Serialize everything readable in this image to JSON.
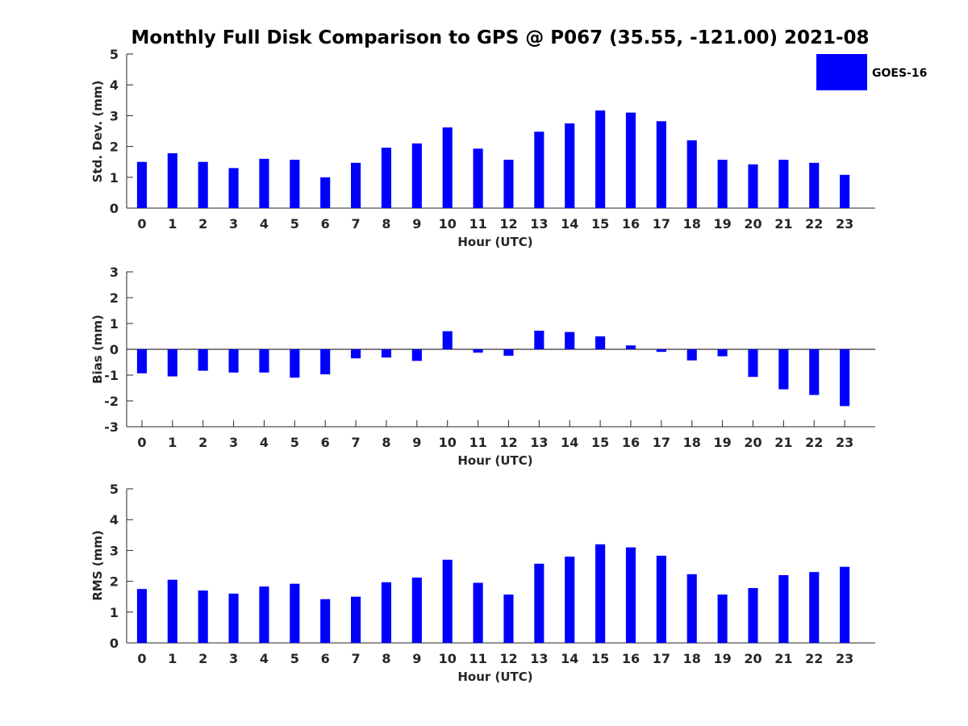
{
  "title": "Monthly Full Disk Comparison to GPS @ P067 (35.55, -121.00) 2021-08",
  "legend": {
    "label": "GOES-16",
    "color": "#0000ff"
  },
  "chart_data": [
    {
      "type": "bar",
      "title": "",
      "xlabel": "Hour (UTC)",
      "ylabel": "Std. Dev. (mm)",
      "categories": [
        "0",
        "1",
        "2",
        "3",
        "4",
        "5",
        "6",
        "7",
        "8",
        "9",
        "10",
        "11",
        "12",
        "13",
        "14",
        "15",
        "16",
        "17",
        "18",
        "19",
        "20",
        "21",
        "22",
        "23"
      ],
      "ylim": [
        0,
        5
      ],
      "yticks": [
        0,
        1,
        2,
        3,
        4,
        5
      ],
      "grid": false,
      "legend_position": "top-right",
      "series": [
        {
          "name": "GOES-16",
          "color": "#0000ff",
          "values": [
            1.5,
            1.78,
            1.5,
            1.3,
            1.6,
            1.57,
            1.0,
            1.47,
            1.96,
            2.1,
            2.62,
            1.93,
            1.57,
            2.48,
            2.75,
            3.17,
            3.1,
            2.82,
            2.2,
            1.57,
            1.42,
            1.57,
            1.47,
            1.08
          ]
        }
      ]
    },
    {
      "type": "bar",
      "title": "",
      "xlabel": "Hour (UTC)",
      "ylabel": "Bias (mm)",
      "categories": [
        "0",
        "1",
        "2",
        "3",
        "4",
        "5",
        "6",
        "7",
        "8",
        "9",
        "10",
        "11",
        "12",
        "13",
        "14",
        "15",
        "16",
        "17",
        "18",
        "19",
        "20",
        "21",
        "22",
        "23"
      ],
      "ylim": [
        -3,
        3
      ],
      "yticks": [
        -3,
        -2,
        -1,
        0,
        1,
        2,
        3
      ],
      "zero_line": true,
      "grid": false,
      "series": [
        {
          "name": "GOES-16",
          "color": "#0000ff",
          "values": [
            -0.93,
            -1.05,
            -0.83,
            -0.9,
            -0.9,
            -1.1,
            -0.97,
            -0.35,
            -0.32,
            -0.45,
            0.7,
            -0.13,
            -0.25,
            0.72,
            0.67,
            0.5,
            0.15,
            -0.1,
            -0.43,
            -0.27,
            -1.07,
            -1.55,
            -1.77,
            -2.2
          ]
        }
      ]
    },
    {
      "type": "bar",
      "title": "",
      "xlabel": "Hour (UTC)",
      "ylabel": "RMS (mm)",
      "categories": [
        "0",
        "1",
        "2",
        "3",
        "4",
        "5",
        "6",
        "7",
        "8",
        "9",
        "10",
        "11",
        "12",
        "13",
        "14",
        "15",
        "16",
        "17",
        "18",
        "19",
        "20",
        "21",
        "22",
        "23"
      ],
      "ylim": [
        0,
        5
      ],
      "yticks": [
        0,
        1,
        2,
        3,
        4,
        5
      ],
      "grid": false,
      "series": [
        {
          "name": "GOES-16",
          "color": "#0000ff",
          "values": [
            1.75,
            2.05,
            1.7,
            1.6,
            1.83,
            1.92,
            1.42,
            1.5,
            1.97,
            2.12,
            2.7,
            1.95,
            1.57,
            2.57,
            2.8,
            3.2,
            3.1,
            2.83,
            2.23,
            1.57,
            1.78,
            2.2,
            2.3,
            2.47
          ]
        }
      ]
    }
  ]
}
